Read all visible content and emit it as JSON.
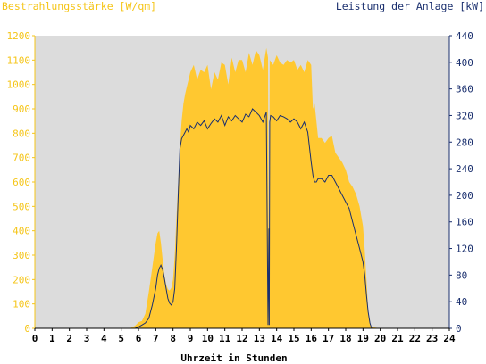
{
  "chart_data": {
    "type": "area",
    "title_left": "Bestrahlungsstärke [W/qm]",
    "title_right": "Leistung der Anlage [kW]",
    "xlabel": "Uhrzeit in Stunden",
    "x_ticks": [
      "0",
      "1",
      "2",
      "3",
      "4",
      "5",
      "6",
      "7",
      "8",
      "9",
      "10",
      "11",
      "12",
      "13",
      "14",
      "15",
      "16",
      "17",
      "18",
      "19",
      "20",
      "21",
      "22",
      "23",
      "24"
    ],
    "y_left_ticks": [
      "0",
      "100",
      "200",
      "300",
      "400",
      "500",
      "600",
      "700",
      "800",
      "900",
      "1000",
      "1100",
      "1200"
    ],
    "y_right_ticks": [
      "0",
      "40",
      "80",
      "120",
      "160",
      "200",
      "240",
      "280",
      "320",
      "360",
      "400",
      "440"
    ],
    "xlim": [
      0,
      24
    ],
    "ylim_left": [
      0,
      1200
    ],
    "ylim_right": [
      0,
      440
    ],
    "grid": false,
    "colors": {
      "plot_bg": "#dcdcdc",
      "irradiance_fill": "#ffc830",
      "power_line": "#1a2f6e",
      "left_axis_text": "#f5c518",
      "right_axis_text": "#1a2f6e"
    },
    "series": [
      {
        "axis": "left",
        "style": "area",
        "x": [
          0,
          5.5,
          5.8,
          6.0,
          6.2,
          6.4,
          6.6,
          6.8,
          7.0,
          7.1,
          7.2,
          7.3,
          7.4,
          7.5,
          7.6,
          7.7,
          7.8,
          7.9,
          8.0,
          8.1,
          8.2,
          8.3,
          8.4,
          8.5,
          8.6,
          8.7,
          8.8,
          8.9,
          9.0,
          9.2,
          9.4,
          9.6,
          9.8,
          10.0,
          10.2,
          10.4,
          10.6,
          10.8,
          11.0,
          11.2,
          11.4,
          11.6,
          11.8,
          12.0,
          12.2,
          12.4,
          12.6,
          12.8,
          13.0,
          13.2,
          13.4,
          13.5,
          13.55,
          13.6,
          13.8,
          14.0,
          14.2,
          14.4,
          14.6,
          14.8,
          15.0,
          15.2,
          15.4,
          15.6,
          15.8,
          16.0,
          16.1,
          16.2,
          16.4,
          16.6,
          16.8,
          17.0,
          17.2,
          17.4,
          17.6,
          17.8,
          18.0,
          18.2,
          18.4,
          18.6,
          18.8,
          19.0,
          19.1,
          19.2,
          19.3,
          19.4,
          19.5,
          20,
          24
        ],
        "values": [
          0,
          0,
          10,
          25,
          30,
          60,
          150,
          250,
          350,
          390,
          400,
          350,
          280,
          220,
          180,
          160,
          155,
          165,
          200,
          300,
          450,
          600,
          750,
          850,
          920,
          960,
          990,
          1020,
          1050,
          1080,
          1020,
          1060,
          1050,
          1080,
          980,
          1050,
          1020,
          1090,
          1080,
          1000,
          1110,
          1050,
          1100,
          1100,
          1050,
          1130,
          1080,
          1140,
          1120,
          1060,
          1150,
          1110,
          100,
          1100,
          1080,
          1120,
          1090,
          1080,
          1100,
          1090,
          1100,
          1060,
          1080,
          1050,
          1100,
          1080,
          900,
          920,
          780,
          780,
          760,
          780,
          790,
          720,
          700,
          680,
          650,
          600,
          580,
          550,
          500,
          420,
          320,
          200,
          80,
          20,
          5,
          0,
          0
        ]
      },
      {
        "axis": "right",
        "style": "line",
        "x": [
          0,
          5.8,
          6.0,
          6.2,
          6.4,
          6.6,
          6.8,
          7.0,
          7.1,
          7.2,
          7.3,
          7.4,
          7.5,
          7.6,
          7.7,
          7.8,
          7.9,
          8.0,
          8.1,
          8.2,
          8.3,
          8.4,
          8.5,
          8.6,
          8.7,
          8.8,
          8.9,
          9.0,
          9.2,
          9.4,
          9.6,
          9.8,
          10.0,
          10.2,
          10.4,
          10.6,
          10.8,
          11.0,
          11.2,
          11.4,
          11.6,
          11.8,
          12.0,
          12.2,
          12.4,
          12.6,
          12.8,
          13.0,
          13.2,
          13.4,
          13.5,
          13.55,
          13.57,
          13.6,
          13.65,
          13.8,
          14.0,
          14.2,
          14.4,
          14.6,
          14.8,
          15.0,
          15.2,
          15.4,
          15.6,
          15.8,
          16.0,
          16.1,
          16.2,
          16.3,
          16.4,
          16.6,
          16.8,
          17.0,
          17.2,
          17.4,
          17.6,
          17.8,
          18.0,
          18.2,
          18.4,
          18.6,
          18.8,
          19.0,
          19.1,
          19.2,
          19.3,
          19.4,
          19.5,
          24
        ],
        "values": [
          0,
          0,
          2,
          5,
          8,
          15,
          35,
          60,
          80,
          90,
          95,
          88,
          75,
          60,
          45,
          38,
          35,
          40,
          60,
          120,
          200,
          270,
          285,
          290,
          295,
          300,
          295,
          305,
          300,
          310,
          305,
          312,
          300,
          308,
          315,
          310,
          320,
          305,
          318,
          312,
          320,
          315,
          310,
          322,
          318,
          330,
          325,
          320,
          310,
          325,
          5,
          150,
          5,
          310,
          320,
          318,
          312,
          320,
          318,
          315,
          310,
          315,
          310,
          300,
          310,
          295,
          250,
          230,
          220,
          220,
          225,
          225,
          220,
          230,
          230,
          220,
          210,
          200,
          190,
          180,
          160,
          140,
          120,
          100,
          80,
          50,
          25,
          8,
          0,
          0
        ]
      }
    ]
  }
}
